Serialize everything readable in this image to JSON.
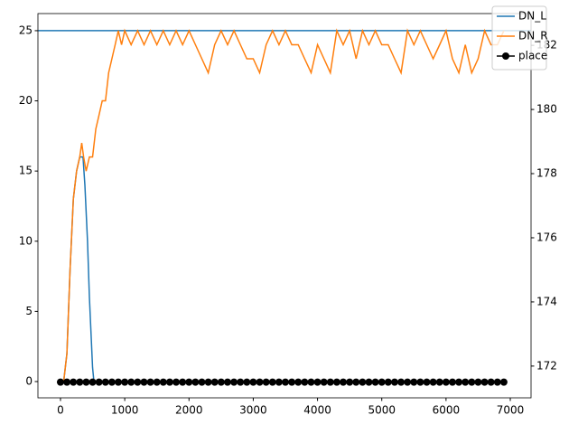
{
  "chart_data": {
    "type": "line",
    "xlim": [
      -351,
      7323
    ],
    "ylim": [
      -1.16,
      26.22
    ],
    "y2lim": [
      171.01,
      182.99
    ],
    "xticks": [
      0,
      1000,
      2000,
      3000,
      4000,
      5000,
      6000,
      7000
    ],
    "yticks": [
      0,
      5,
      10,
      15,
      20,
      25
    ],
    "y2ticks": [
      172,
      174,
      176,
      178,
      180,
      182
    ],
    "hline": {
      "value": 25,
      "color": "#1f77b4"
    },
    "legend": "upper right",
    "series": [
      {
        "name": "DN_L",
        "color": "#1f77b4",
        "x": [
          0,
          50,
          100,
          150,
          200,
          250,
          300,
          350,
          380,
          420,
          450,
          480,
          500,
          520
        ],
        "values": [
          0,
          0,
          2,
          8,
          13,
          15,
          16,
          16,
          14,
          10,
          6,
          3,
          1,
          0
        ]
      },
      {
        "name": "DN_R",
        "color": "#ff7f0e",
        "x": [
          0,
          50,
          100,
          150,
          200,
          250,
          300,
          330,
          360,
          400,
          450,
          500,
          550,
          600,
          650,
          700,
          750,
          800,
          850,
          900,
          950,
          1000,
          1100,
          1200,
          1300,
          1400,
          1500,
          1600,
          1700,
          1800,
          1900,
          2000,
          2100,
          2200,
          2300,
          2400,
          2500,
          2600,
          2700,
          2800,
          2900,
          3000,
          3100,
          3200,
          3300,
          3400,
          3500,
          3600,
          3700,
          3800,
          3900,
          4000,
          4100,
          4200,
          4300,
          4400,
          4500,
          4600,
          4700,
          4800,
          4900,
          5000,
          5100,
          5200,
          5300,
          5400,
          5500,
          5600,
          5700,
          5800,
          5900,
          6000,
          6100,
          6200,
          6300,
          6400,
          6500,
          6600,
          6700,
          6800,
          6900
        ],
        "values": [
          0,
          0,
          2,
          8,
          13,
          15,
          16,
          17,
          16,
          15,
          16,
          16,
          18,
          19,
          20,
          20,
          22,
          23,
          24,
          25,
          24,
          25,
          24,
          25,
          24,
          25,
          24,
          25,
          24,
          25,
          24,
          25,
          24,
          23,
          22,
          24,
          25,
          24,
          25,
          24,
          23,
          23,
          22,
          24,
          25,
          24,
          25,
          24,
          24,
          23,
          22,
          24,
          23,
          22,
          25,
          24,
          25,
          23,
          25,
          24,
          25,
          24,
          24,
          23,
          22,
          25,
          24,
          25,
          24,
          23,
          24,
          25,
          23,
          22,
          24,
          22,
          23,
          25,
          24,
          24,
          25
        ]
      },
      {
        "name": "place",
        "color": "#000000",
        "axis": "y2",
        "marker": "o",
        "x": [
          0,
          100,
          200,
          300,
          400,
          500,
          600,
          700,
          800,
          900,
          1000,
          1100,
          1200,
          1300,
          1400,
          1500,
          1600,
          1700,
          1800,
          1900,
          2000,
          2100,
          2200,
          2300,
          2400,
          2500,
          2600,
          2700,
          2800,
          2900,
          3000,
          3100,
          3200,
          3300,
          3400,
          3500,
          3600,
          3700,
          3800,
          3900,
          4000,
          4100,
          4200,
          4300,
          4400,
          4500,
          4600,
          4700,
          4800,
          4900,
          5000,
          5100,
          5200,
          5300,
          5400,
          5500,
          5600,
          5700,
          5800,
          5900,
          6000,
          6100,
          6200,
          6300,
          6400,
          6500,
          6600,
          6700,
          6800,
          6900
        ],
        "values": [
          171.5,
          171.5,
          171.5,
          171.5,
          171.5,
          171.5,
          171.5,
          171.5,
          171.5,
          171.5,
          171.5,
          171.5,
          171.5,
          171.5,
          171.5,
          171.5,
          171.5,
          171.5,
          171.5,
          171.5,
          171.5,
          171.5,
          171.5,
          171.5,
          171.5,
          171.5,
          171.5,
          171.5,
          171.5,
          171.5,
          171.5,
          171.5,
          171.5,
          171.5,
          171.5,
          171.5,
          171.5,
          171.5,
          171.5,
          171.5,
          171.5,
          171.5,
          171.5,
          171.5,
          171.5,
          171.5,
          171.5,
          171.5,
          171.5,
          171.5,
          171.5,
          171.5,
          171.5,
          171.5,
          171.5,
          171.5,
          171.5,
          171.5,
          171.5,
          171.5,
          171.5,
          171.5,
          171.5,
          171.5,
          171.5,
          171.5,
          171.5,
          171.5,
          171.5,
          171.5
        ]
      }
    ]
  }
}
